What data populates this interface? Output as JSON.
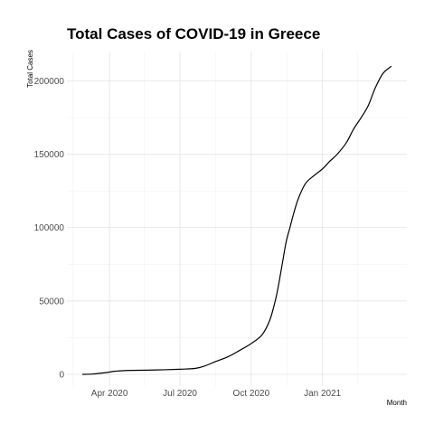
{
  "chart_data": {
    "type": "line",
    "title": "Total Cases of COVID-19 in Greece",
    "xlabel": "Month",
    "ylabel": "Total Cases",
    "xlim": [
      "2020-02-06",
      "2021-04-20"
    ],
    "ylim": [
      -8000,
      220000
    ],
    "grid": true,
    "x_ticks": [
      {
        "date": "2020-04-01",
        "label": "Apr 2020"
      },
      {
        "date": "2020-07-01",
        "label": "Jul 2020"
      },
      {
        "date": "2020-10-01",
        "label": "Oct 2020"
      },
      {
        "date": "2021-01-01",
        "label": "Jan 2021"
      }
    ],
    "x_minor_ticks": [
      "2020-02-14",
      "2020-05-16",
      "2020-08-16",
      "2020-11-16",
      "2021-02-15"
    ],
    "y_ticks": [
      0,
      50000,
      100000,
      150000,
      200000
    ],
    "y_minor_ticks": [
      25000,
      75000,
      125000,
      175000
    ],
    "series": [
      {
        "x": [
          "2020-02-26",
          "2020-03-10",
          "2020-03-25",
          "2020-04-10",
          "2020-05-01",
          "2020-06-01",
          "2020-07-01",
          "2020-07-20",
          "2020-08-01",
          "2020-08-15",
          "2020-09-01",
          "2020-09-15",
          "2020-10-01",
          "2020-10-15",
          "2020-10-25",
          "2020-11-01",
          "2020-11-05",
          "2020-11-10",
          "2020-11-15",
          "2020-11-20",
          "2020-11-25",
          "2020-12-01",
          "2020-12-10",
          "2020-12-20",
          "2021-01-01",
          "2021-01-10",
          "2021-01-20",
          "2021-02-01",
          "2021-02-10",
          "2021-02-20",
          "2021-03-01",
          "2021-03-10",
          "2021-03-20",
          "2021-03-31"
        ],
        "y": [
          0,
          200,
          1000,
          2200,
          2700,
          3000,
          3500,
          4000,
          5500,
          8500,
          12000,
          16000,
          21000,
          27000,
          37000,
          50000,
          60000,
          75000,
          90000,
          100000,
          110000,
          120000,
          130000,
          135000,
          140000,
          145000,
          150000,
          158000,
          167000,
          175000,
          183000,
          195000,
          205000,
          210000
        ]
      }
    ]
  }
}
